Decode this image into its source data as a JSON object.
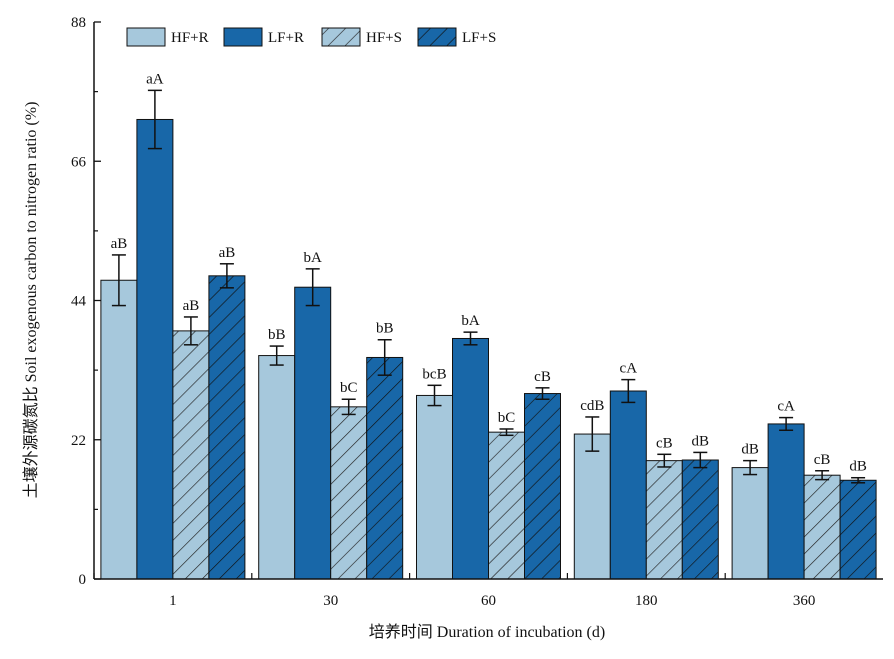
{
  "chart_data": {
    "type": "bar",
    "title": "",
    "xlabel": "培养时间 Duration of incubation (d)",
    "ylabel": "土壤外源碳氮比 Soil exogenous carbon to nitrogen ratio (%)",
    "categories": [
      "1",
      "30",
      "60",
      "180",
      "360"
    ],
    "ylim": [
      0,
      88
    ],
    "yticks": [
      "0",
      "22",
      "44",
      "66",
      "88"
    ],
    "legend_position": "top-left",
    "series": [
      {
        "name": "HF+R",
        "color": "#a6c8dc",
        "hatched": false,
        "values": [
          47.2,
          35.3,
          29.0,
          22.9,
          17.6
        ],
        "errors": [
          4.0,
          1.5,
          1.6,
          2.7,
          1.1
        ],
        "labels": [
          "aB",
          "bB",
          "bcB",
          "cdB",
          "dB"
        ]
      },
      {
        "name": "LF+R",
        "color": "#1867a8",
        "hatched": false,
        "values": [
          72.6,
          46.1,
          38.0,
          29.7,
          24.5
        ],
        "errors": [
          4.6,
          2.9,
          1.0,
          1.8,
          1.0
        ],
        "labels": [
          "aA",
          "bA",
          "bA",
          "cA",
          "cA"
        ]
      },
      {
        "name": "HF+S",
        "color": "#a6c8dc",
        "hatched": true,
        "values": [
          39.2,
          27.2,
          23.2,
          18.7,
          16.4
        ],
        "errors": [
          2.2,
          1.2,
          0.5,
          1.0,
          0.7
        ],
        "labels": [
          "aB",
          "bC",
          "bC",
          "cB",
          "cB"
        ]
      },
      {
        "name": "LF+S",
        "color": "#1867a8",
        "hatched": true,
        "values": [
          47.9,
          35.0,
          29.3,
          18.8,
          15.6
        ],
        "errors": [
          1.9,
          2.8,
          0.9,
          1.2,
          0.4
        ],
        "labels": [
          "aB",
          "bB",
          "cB",
          "dB",
          "dB"
        ]
      }
    ]
  }
}
